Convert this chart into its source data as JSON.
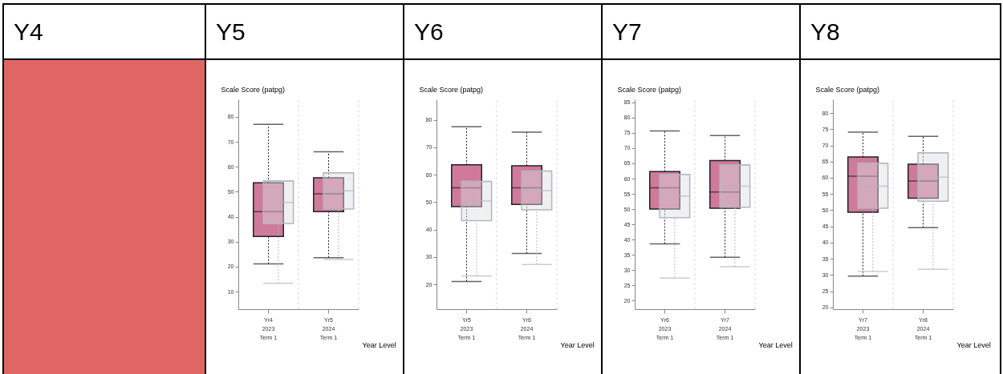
{
  "chart_data": [
    {
      "type": "other",
      "title": "Y4"
    },
    {
      "type": "box",
      "title": "Y5",
      "xlabel": "Year Level",
      "ylabel": "Scale Score (patpg)",
      "categories": [
        "Yr4\n2023\nTerm 1",
        "Yr5\n2024\nTerm 1"
      ],
      "ylim": [
        3,
        87
      ],
      "yticks": [
        10,
        20,
        30,
        40,
        50,
        60,
        70,
        80
      ],
      "grid": "x",
      "series": [
        {
          "color": "#cf7a9b",
          "boxes": [
            {
              "low": 21.1,
              "q1": 32.1,
              "median": 42.0,
              "q3": 53.6,
              "high": 77.0
            },
            {
              "low": 23.6,
              "q1": 42.0,
              "median": 49.2,
              "q3": 55.6,
              "high": 66.0
            }
          ]
        },
        {
          "color": "#dcdde2",
          "boxes": [
            {
              "low": 13.3,
              "q1": 37.2,
              "median": 45.7,
              "q3": 54.3,
              "high": 54.3
            },
            {
              "low": 22.9,
              "q1": 43.1,
              "median": 50.4,
              "q3": 57.6,
              "high": 57.6
            }
          ]
        }
      ]
    },
    {
      "type": "box",
      "title": "Y6",
      "xlabel": "Year Level",
      "ylabel": "Scale Score (patpg)",
      "categories": [
        "Yr5\n2023\nTerm 1",
        "Yr6\n2024\nTerm 1"
      ],
      "ylim": [
        11,
        87.5
      ],
      "yticks": [
        20,
        30,
        40,
        50,
        60,
        70,
        80
      ],
      "grid": "x",
      "series": [
        {
          "color": "#cf7a9b",
          "boxes": [
            {
              "low": 21.1,
              "q1": 48.4,
              "median": 55.2,
              "q3": 63.6,
              "high": 77.5
            },
            {
              "low": 31.3,
              "q1": 49.2,
              "median": 55.2,
              "q3": 63.3,
              "high": 75.5
            }
          ]
        },
        {
          "color": "#dcdde2",
          "boxes": [
            {
              "low": 23.1,
              "q1": 43.3,
              "median": 50.4,
              "q3": 57.6,
              "high": 57.6
            },
            {
              "low": 27.3,
              "q1": 47.2,
              "median": 54.2,
              "q3": 61.4,
              "high": 61.4
            }
          ]
        }
      ]
    },
    {
      "type": "box",
      "title": "Y7",
      "xlabel": "Year Level",
      "ylabel": "Scale Score (patpg)",
      "categories": [
        "Yr6\n2023\nTerm 1",
        "Yr7\n2024\nTerm 1"
      ],
      "ylim": [
        17.2,
        86
      ],
      "yticks": [
        20,
        25,
        30,
        35,
        40,
        45,
        50,
        55,
        60,
        65,
        70,
        75,
        80,
        85
      ],
      "grid": "x",
      "series": [
        {
          "color": "#cf7a9b",
          "boxes": [
            {
              "low": 38.6,
              "q1": 50.0,
              "median": 57.0,
              "q3": 62.3,
              "high": 75.6
            },
            {
              "low": 34.2,
              "q1": 50.3,
              "median": 55.6,
              "q3": 65.9,
              "high": 74.1
            }
          ]
        },
        {
          "color": "#dcdde2",
          "boxes": [
            {
              "low": 27.4,
              "q1": 47.2,
              "median": 54.3,
              "q3": 61.4,
              "high": 61.4
            },
            {
              "low": 31.1,
              "q1": 50.6,
              "median": 57.5,
              "q3": 64.5,
              "high": 64.5
            }
          ]
        }
      ]
    },
    {
      "type": "box",
      "title": "Y8",
      "xlabel": "Year Level",
      "ylabel": "Scale Score (patpg)",
      "categories": [
        "Yr7\n2023\nTerm 1",
        "Yr8\n2024\nTerm 1"
      ],
      "ylim": [
        19.5,
        84.2
      ],
      "yticks": [
        20,
        25,
        30,
        35,
        40,
        45,
        50,
        55,
        60,
        65,
        70,
        75,
        80
      ],
      "grid": "x",
      "series": [
        {
          "color": "#cf7a9b",
          "boxes": [
            {
              "low": 29.7,
              "q1": 49.4,
              "median": 60.5,
              "q3": 66.4,
              "high": 74.1
            },
            {
              "low": 44.6,
              "q1": 53.7,
              "median": 59.0,
              "q3": 64.2,
              "high": 72.8
            }
          ]
        },
        {
          "color": "#dcdde2",
          "boxes": [
            {
              "low": 31.1,
              "q1": 50.6,
              "median": 57.4,
              "q3": 64.5,
              "high": 64.5
            },
            {
              "low": 31.8,
              "q1": 52.8,
              "median": 60.2,
              "q3": 67.7,
              "high": 67.7
            }
          ]
        }
      ]
    }
  ]
}
